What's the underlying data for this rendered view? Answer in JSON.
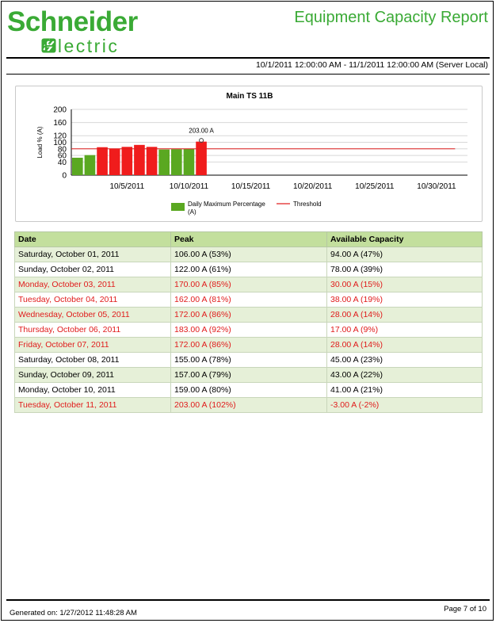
{
  "header": {
    "brand_name": "Schneider",
    "brand_sub": "Electric",
    "report_title": "Equipment Capacity Report",
    "date_range": "10/1/2011 12:00:00 AM - 11/1/2011 12:00:00 AM (Server Local)",
    "brand_color": "#3aaa35"
  },
  "chart_data": {
    "type": "bar",
    "title": "Main TS 11B",
    "ylabel": "Load % (A)",
    "xlabel": "",
    "ylim": [
      0,
      200
    ],
    "yticks": [
      "0",
      "40",
      "60",
      "80",
      "100",
      "120",
      "160",
      "200"
    ],
    "ytick_values": [
      0,
      40,
      60,
      80,
      100,
      120,
      160,
      200
    ],
    "xtick_labels": [
      "10/5/2011",
      "10/10/2011",
      "10/15/2011",
      "10/20/2011",
      "10/25/2011",
      "10/30/2011"
    ],
    "xtick_days": [
      5,
      10,
      15,
      20,
      25,
      30
    ],
    "x_range_days": [
      1,
      32
    ],
    "grid": true,
    "legend_position": "bottom",
    "series": [
      {
        "name": "Daily Maximum Percentage (A)",
        "name_line1": "Daily Maximum Percentage",
        "name_line2": "(A)",
        "days": [
          1,
          2,
          3,
          4,
          5,
          6,
          7,
          8,
          9,
          10,
          11
        ],
        "values": [
          53,
          61,
          85,
          81,
          86,
          92,
          86,
          78,
          79,
          80,
          102
        ],
        "colors": [
          "#5aa821",
          "#5aa821",
          "#f01c1c",
          "#f01c1c",
          "#f01c1c",
          "#f01c1c",
          "#f01c1c",
          "#5aa821",
          "#5aa821",
          "#5aa821",
          "#f01c1c"
        ],
        "legend_color": "#5aa821"
      },
      {
        "name": "Threshold",
        "type": "line",
        "value": 80,
        "x_from_day": 1,
        "x_to_day": 31,
        "color": "#e02020"
      }
    ],
    "annotations": [
      {
        "day": 11,
        "value": 102,
        "text": "203.00 A"
      }
    ],
    "bar_green": "#5aa821",
    "bar_red": "#f01c1c"
  },
  "table": {
    "headers": [
      "Date",
      "Peak",
      "Available Capacity"
    ],
    "rows": [
      {
        "date": "Saturday, October 01, 2011",
        "peak": "106.00 A (53%)",
        "capacity": "94.00 A (47%)",
        "alert": false
      },
      {
        "date": "Sunday, October 02, 2011",
        "peak": "122.00 A (61%)",
        "capacity": "78.00 A (39%)",
        "alert": false
      },
      {
        "date": "Monday, October 03, 2011",
        "peak": "170.00 A (85%)",
        "capacity": "30.00 A (15%)",
        "alert": true
      },
      {
        "date": "Tuesday, October 04, 2011",
        "peak": "162.00 A (81%)",
        "capacity": "38.00 A (19%)",
        "alert": true
      },
      {
        "date": "Wednesday, October 05, 2011",
        "peak": "172.00 A (86%)",
        "capacity": "28.00 A (14%)",
        "alert": true
      },
      {
        "date": "Thursday, October 06, 2011",
        "peak": "183.00 A (92%)",
        "capacity": "17.00 A (9%)",
        "alert": true
      },
      {
        "date": "Friday, October 07, 2011",
        "peak": "172.00 A (86%)",
        "capacity": "28.00 A (14%)",
        "alert": true
      },
      {
        "date": "Saturday, October 08, 2011",
        "peak": "155.00 A (78%)",
        "capacity": "45.00 A (23%)",
        "alert": false
      },
      {
        "date": "Sunday, October 09, 2011",
        "peak": "157.00 A (79%)",
        "capacity": "43.00 A (22%)",
        "alert": false
      },
      {
        "date": "Monday, October 10, 2011",
        "peak": "159.00 A (80%)",
        "capacity": "41.00 A (21%)",
        "alert": false
      },
      {
        "date": "Tuesday, October 11, 2011",
        "peak": "203.00 A (102%)",
        "capacity": "-3.00 A (-2%)",
        "alert": true
      }
    ],
    "alert_color": "#e01b1b",
    "header_color": "#c3df9d",
    "stripe_color": "#e6f0d8"
  },
  "footer": {
    "generated": "Generated on: 1/27/2012 11:48:28 AM",
    "page": "Page 7 of 10"
  }
}
